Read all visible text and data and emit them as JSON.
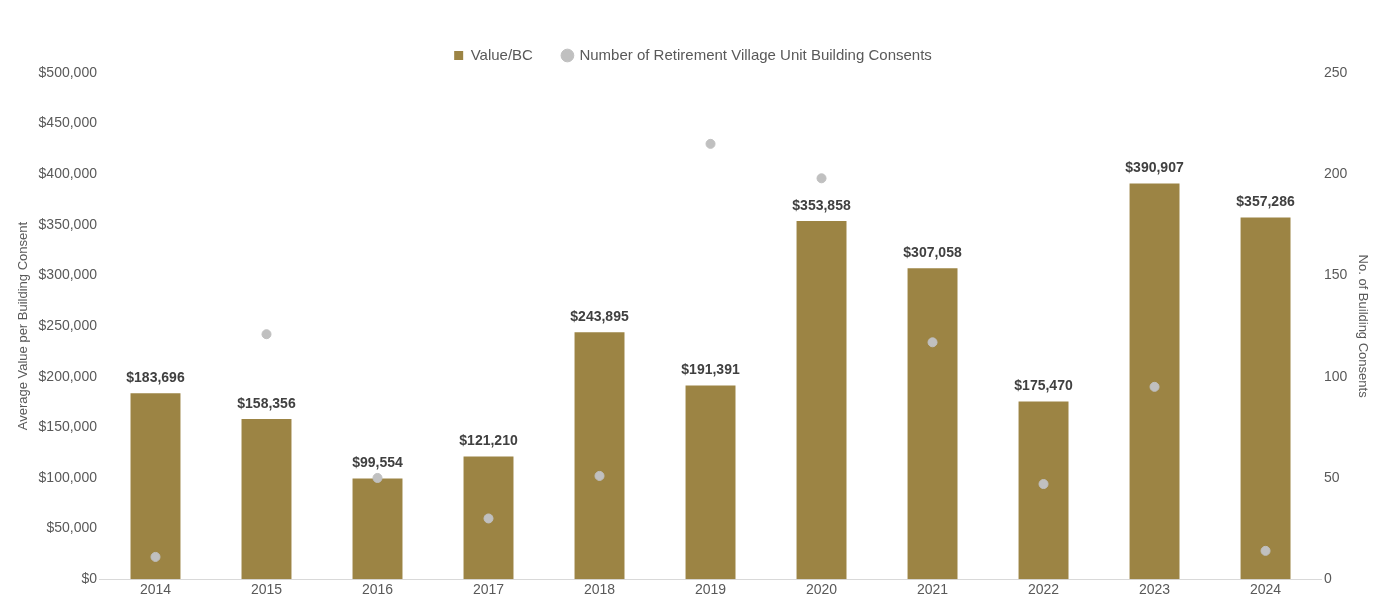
{
  "chart_data": {
    "type": "bar",
    "ylabel": "Average Value per Building Consent",
    "y2label": "No. of Building Consents",
    "categories": [
      "2014",
      "2015",
      "2016",
      "2017",
      "2018",
      "2019",
      "2020",
      "2021",
      "2022",
      "2023",
      "2024"
    ],
    "series": [
      {
        "name": "Value/BC",
        "color": "#9c8444",
        "values": [
          183696,
          158356,
          99554,
          121210,
          243895,
          191391,
          353858,
          307058,
          175470,
          390907,
          357286
        ],
        "value_labels": [
          "$183,696",
          "$158,356",
          "$99,554",
          "$121,210",
          "$243,895",
          "$191,391",
          "$353,858",
          "$307,058",
          "$175,470",
          "$390,907",
          "$357,286"
        ]
      },
      {
        "name": "Number of Retirement Village Unit Building Consents",
        "type": "scatter",
        "axis": "y2",
        "color": "#c0c0c0",
        "marker": "circle",
        "values": [
          11,
          121,
          50,
          30,
          51,
          215,
          198,
          117,
          47,
          95,
          14
        ]
      }
    ],
    "ylim": [
      0,
      500000
    ],
    "yticks": [
      {
        "value": 0,
        "label": "$0"
      },
      {
        "value": 50000,
        "label": "$50,000"
      },
      {
        "value": 100000,
        "label": "$100,000"
      },
      {
        "value": 150000,
        "label": "$150,000"
      },
      {
        "value": 200000,
        "label": "$200,000"
      },
      {
        "value": 250000,
        "label": "$250,000"
      },
      {
        "value": 300000,
        "label": "$300,000"
      },
      {
        "value": 350000,
        "label": "$350,000"
      },
      {
        "value": 400000,
        "label": "$400,000"
      },
      {
        "value": 450000,
        "label": "$450,000"
      },
      {
        "value": 500000,
        "label": "$500,000"
      }
    ],
    "y2lim": [
      0,
      250
    ],
    "y2ticks": [
      0,
      50,
      100,
      150,
      200,
      250
    ],
    "grid": false,
    "legend": "top"
  }
}
